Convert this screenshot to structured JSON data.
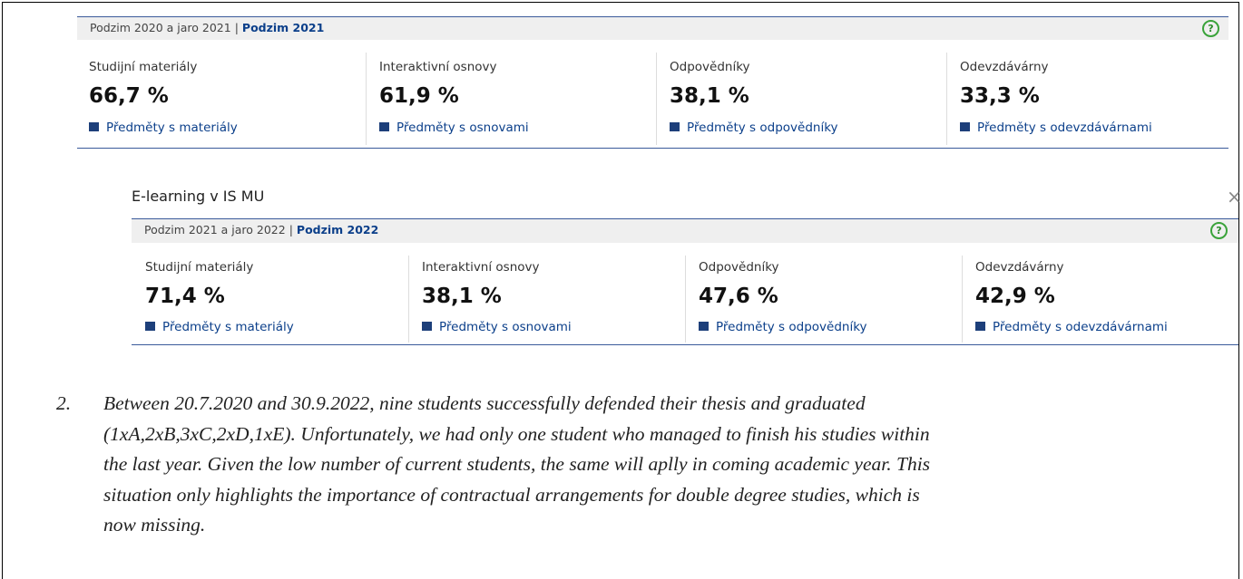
{
  "panels": [
    {
      "header": {
        "period": "Podzim 2020 a jaro 2021",
        "separator": "|",
        "current": "Podzim 2021"
      },
      "help": "?",
      "stats": [
        {
          "label": "Studijní materiály",
          "value": "66,7 %",
          "link": "Předměty s materiály"
        },
        {
          "label": "Interaktivní osnovy",
          "value": "61,9 %",
          "link": "Předměty s osnovami"
        },
        {
          "label": "Odpovědníky",
          "value": "38,1 %",
          "link": "Předměty s odpovědníky"
        },
        {
          "label": "Odevzdávárny",
          "value": "33,3 %",
          "link": "Předměty s odevzdávárnami"
        }
      ]
    },
    {
      "title": "E-learning v IS MU",
      "close": "×",
      "header": {
        "period": "Podzim 2021 a jaro 2022",
        "separator": "|",
        "current": "Podzim 2022"
      },
      "help": "?",
      "stats": [
        {
          "label": "Studijní materiály",
          "value": "71,4 %",
          "link": "Předměty s materiály"
        },
        {
          "label": "Interaktivní osnovy",
          "value": "38,1 %",
          "link": "Předměty s osnovami"
        },
        {
          "label": "Odpovědníky",
          "value": "47,6 %",
          "link": "Předměty s odpovědníky"
        },
        {
          "label": "Odevzdávárny",
          "value": "42,9 %",
          "link": "Předměty s odevzdávárnami"
        }
      ]
    }
  ],
  "note": {
    "number": "2.",
    "lines": [
      "Between 20.7.2020 and 30.9.2022, nine students successfully defended their thesis and graduated",
      "(1xA,2xB,3xC,2xD,1xE). Unfortunately, we had only one student who managed to finish his studies within",
      "the last year. Given the low number of current students, the same will aplly in coming academic year. This",
      "situation only highlights the importance of contractual arrangements for double degree studies, which is",
      "now missing."
    ]
  }
}
